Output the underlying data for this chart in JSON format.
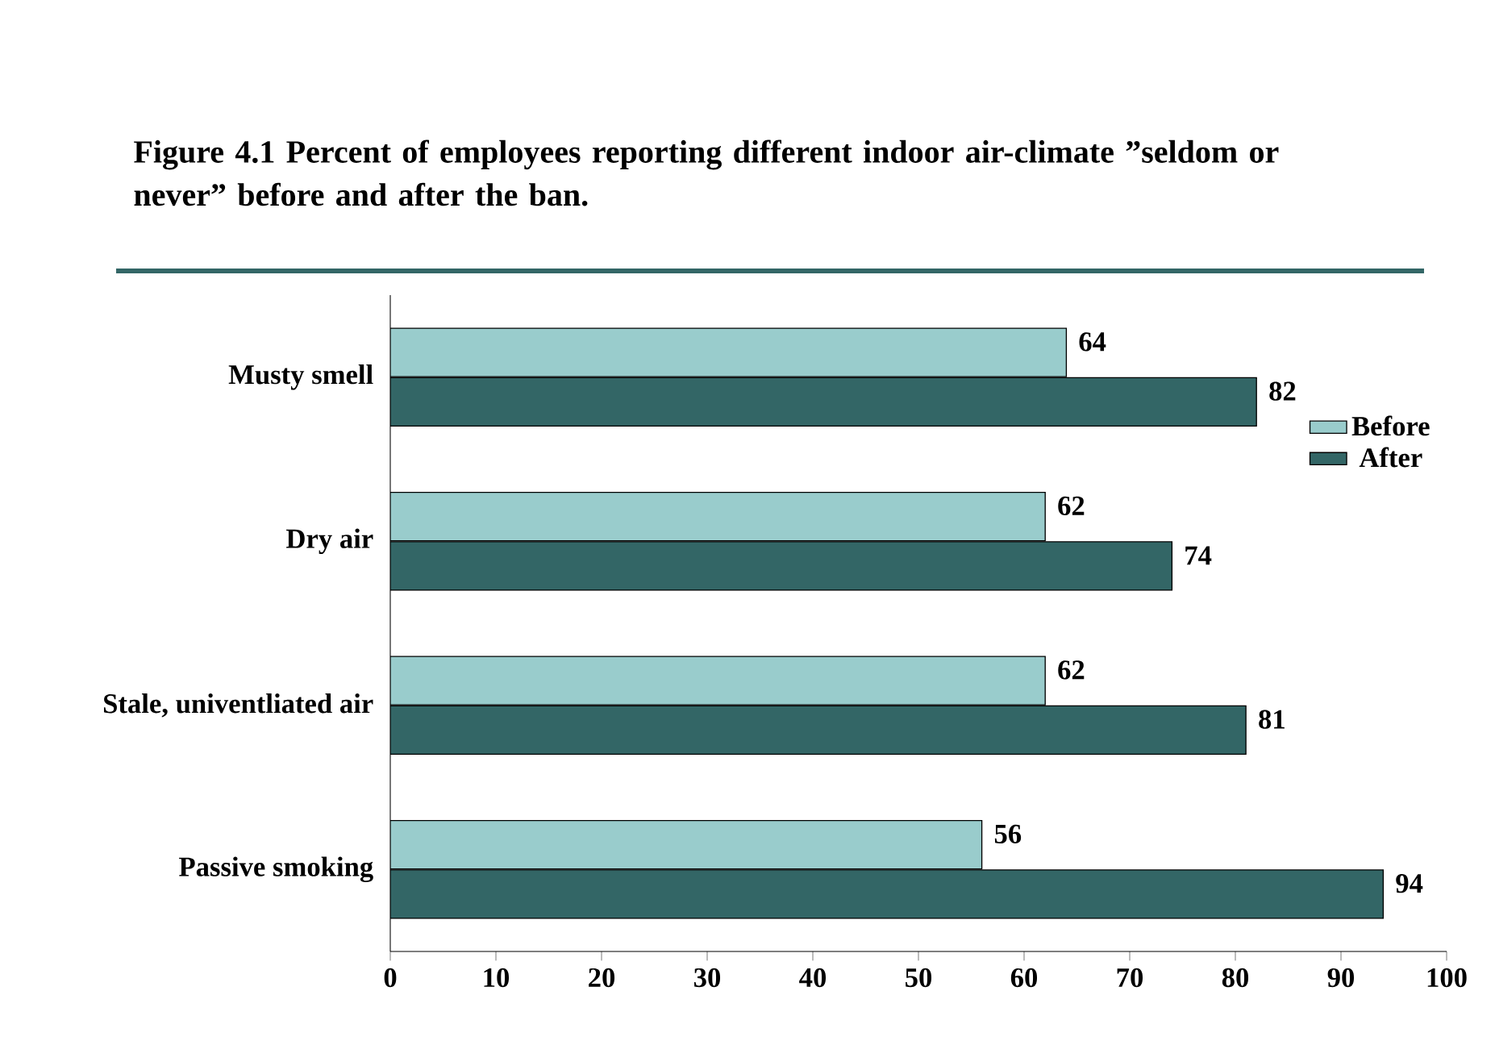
{
  "chart_data": {
    "type": "bar",
    "orientation": "horizontal",
    "title": "Figure 4.1 Percent of employees reporting different indoor air-climate ”seldom or never” before and after the ban.",
    "categories": [
      "Musty smell",
      "Dry air",
      "Stale, univentliated air",
      "Passive smoking"
    ],
    "series": [
      {
        "name": "Before",
        "color": "#99cccc",
        "values": [
          64,
          62,
          62,
          56
        ]
      },
      {
        "name": "After",
        "color": "#336666",
        "values": [
          82,
          74,
          81,
          94
        ]
      }
    ],
    "xlim": [
      0,
      100
    ],
    "xticks": [
      0,
      10,
      20,
      30,
      40,
      50,
      60,
      70,
      80,
      90,
      100
    ],
    "data_labels": true,
    "legend": "top right",
    "grid": false
  }
}
